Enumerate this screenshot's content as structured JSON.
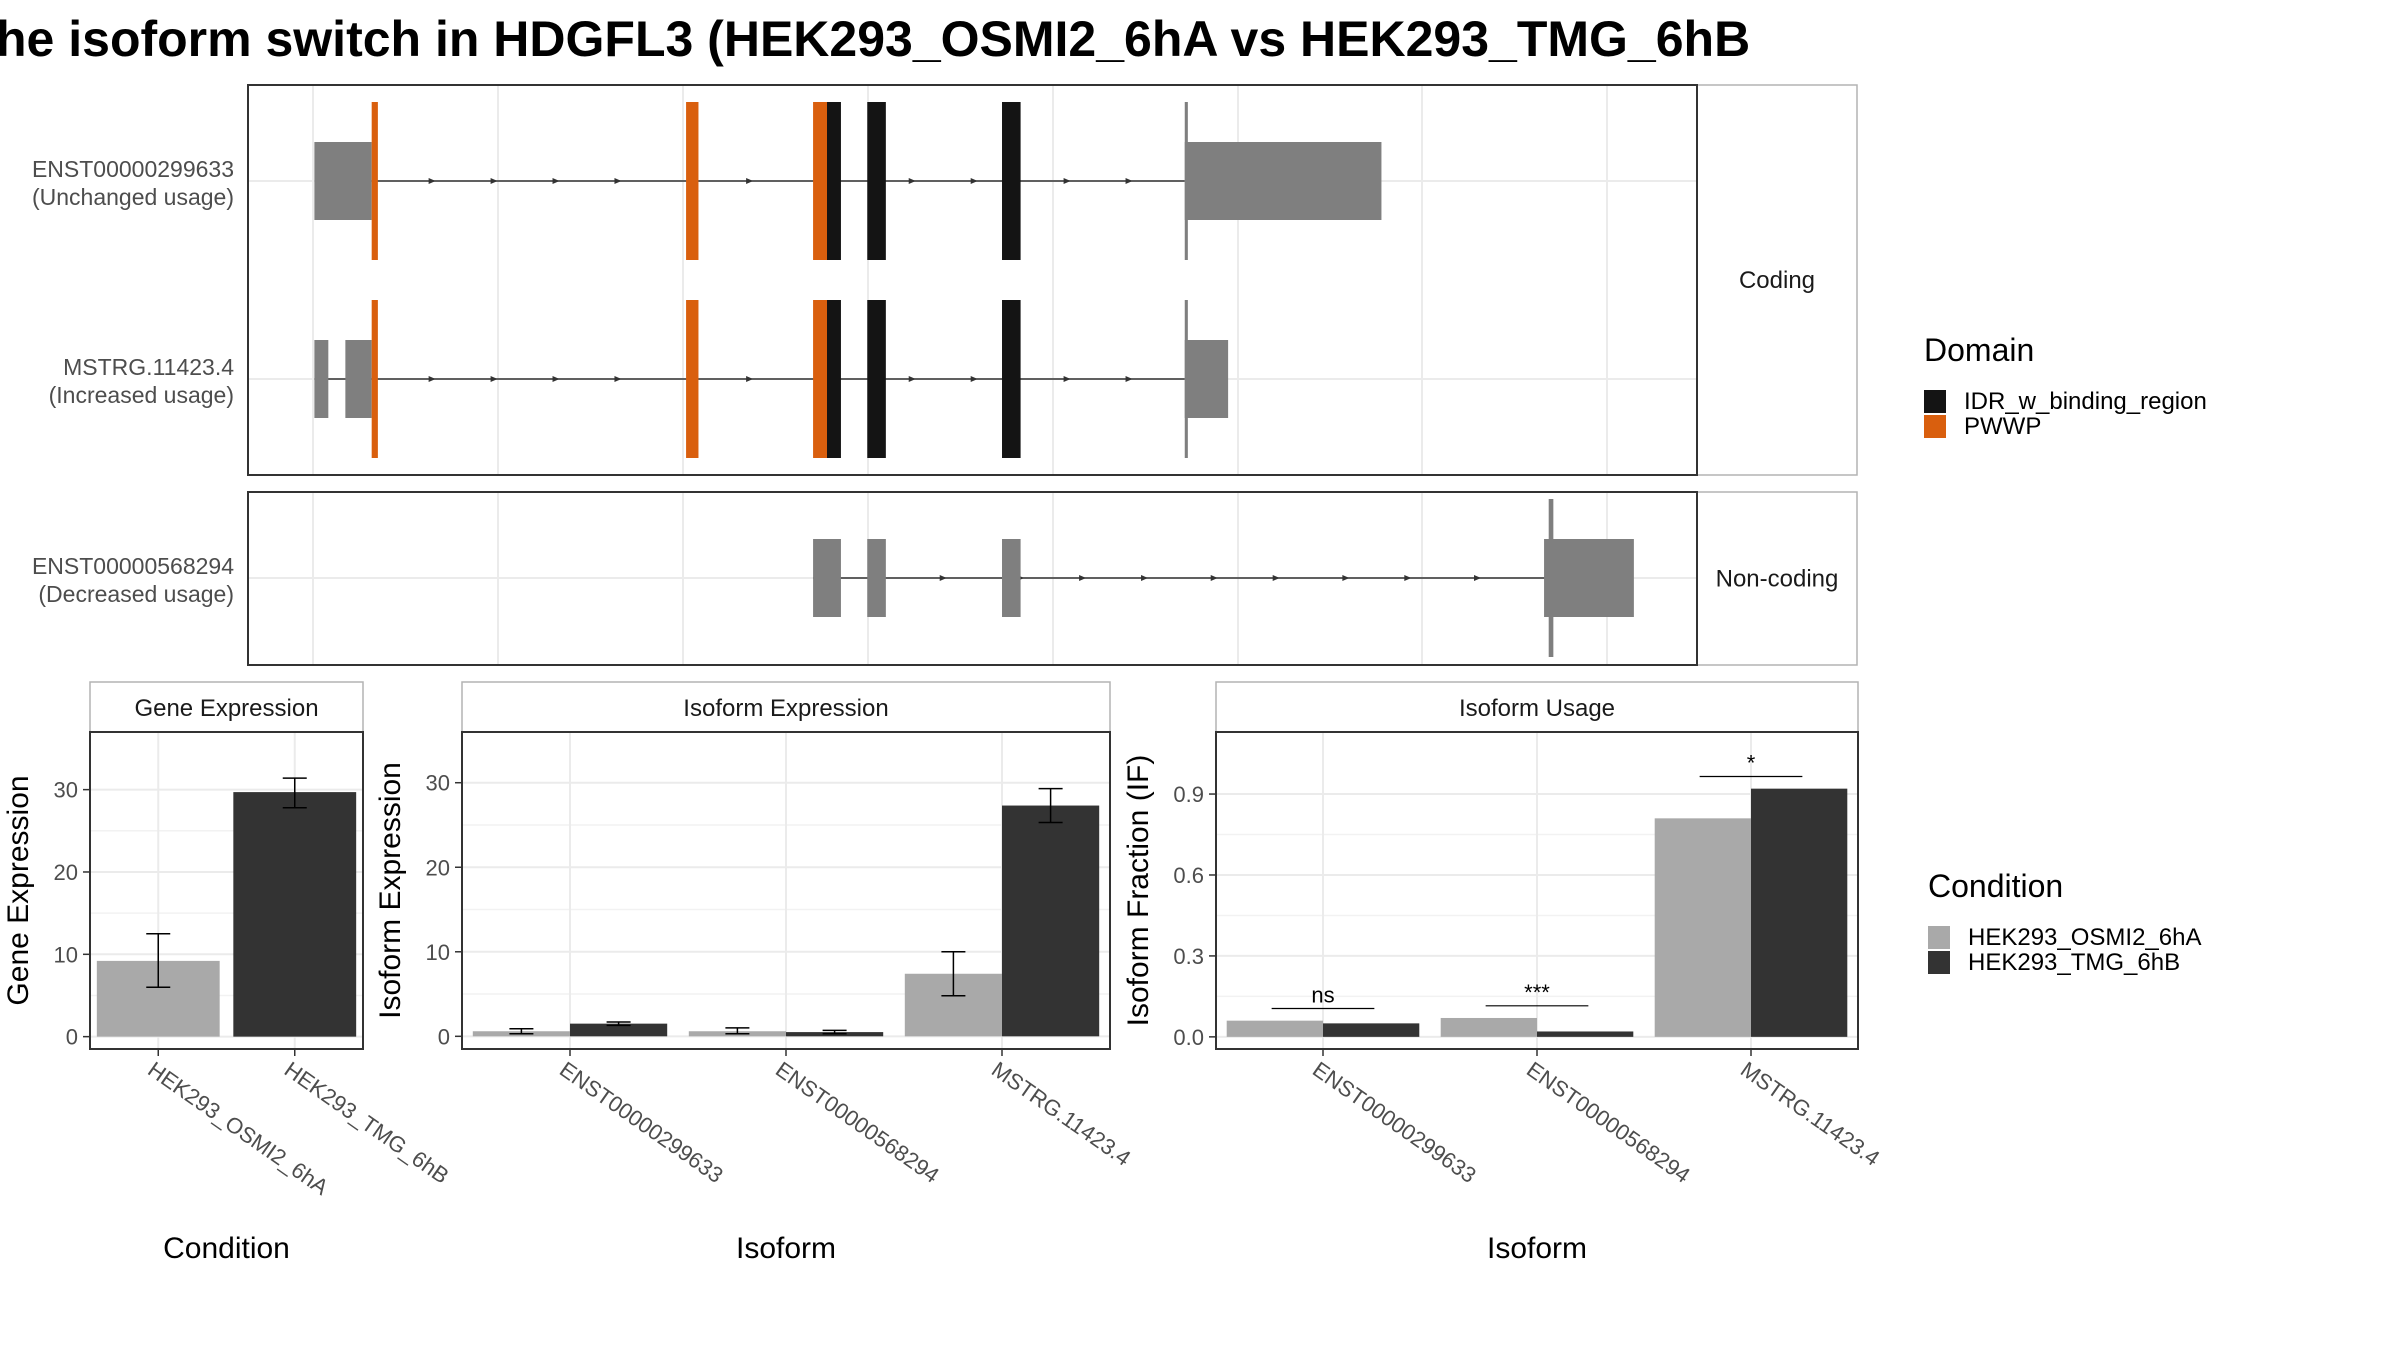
{
  "title": "he isoform switch in HDGFL3 (HEK293_OSMI2_6hA vs HEK293_TMG_6hB",
  "colors": {
    "utr": "#7f7f7f",
    "IDR_w_binding_region": "#141414",
    "PWWP": "#d95f0e",
    "cond1": "#a9a9a9",
    "cond2": "#333333",
    "grid": "#ebebeb",
    "panel_border": "#333333",
    "strip_border": "#b3b3b3"
  },
  "transcripts": {
    "panels": [
      {
        "label": "Coding",
        "rows": [
          {
            "name": "ENST00000299633",
            "usage": "(Unchanged usage)",
            "line": [
              240,
              765
            ],
            "arrows": [
              280,
              320,
              360,
              400,
              485,
              590,
              630,
              690,
              730
            ],
            "blocks": [
              {
                "start": 203,
                "end": 240,
                "type": "utr"
              },
              {
                "start": 240,
                "end": 244,
                "type": "PWWP",
                "tall": true
              },
              {
                "start": 443,
                "end": 451,
                "type": "PWWP",
                "tall": true
              },
              {
                "start": 525,
                "end": 534,
                "type": "PWWP",
                "tall": true
              },
              {
                "start": 534,
                "end": 543,
                "type": "IDR_w_binding_region",
                "tall": true
              },
              {
                "start": 560,
                "end": 572,
                "type": "IDR_w_binding_region",
                "tall": true
              },
              {
                "start": 647,
                "end": 659,
                "type": "IDR_w_binding_region",
                "tall": true
              },
              {
                "start": 765,
                "end": 767,
                "type": "utr",
                "tall": true
              },
              {
                "start": 765,
                "end": 892,
                "type": "utr"
              }
            ]
          },
          {
            "name": "MSTRG.11423.4",
            "usage": "(Increased usage)",
            "line": [
              203,
              765
            ],
            "arrows": [
              280,
              320,
              360,
              400,
              485,
              590,
              630,
              690,
              730
            ],
            "blocks": [
              {
                "start": 203,
                "end": 212,
                "type": "utr"
              },
              {
                "start": 223,
                "end": 240,
                "type": "utr"
              },
              {
                "start": 240,
                "end": 244,
                "type": "PWWP",
                "tall": true
              },
              {
                "start": 443,
                "end": 451,
                "type": "PWWP",
                "tall": true
              },
              {
                "start": 525,
                "end": 534,
                "type": "PWWP",
                "tall": true
              },
              {
                "start": 534,
                "end": 543,
                "type": "IDR_w_binding_region",
                "tall": true
              },
              {
                "start": 560,
                "end": 572,
                "type": "IDR_w_binding_region",
                "tall": true
              },
              {
                "start": 647,
                "end": 659,
                "type": "IDR_w_binding_region",
                "tall": true
              },
              {
                "start": 765,
                "end": 767,
                "type": "utr",
                "tall": true
              },
              {
                "start": 765,
                "end": 793,
                "type": "utr"
              }
            ]
          }
        ]
      },
      {
        "label": "Non-coding",
        "rows": [
          {
            "name": "ENST00000568294",
            "usage": "(Decreased usage)",
            "line": [
              525,
              1000
            ],
            "arrows": [
              610,
              660,
              700,
              740,
              785,
              825,
              870,
              910,
              955
            ],
            "blocks": [
              {
                "start": 525,
                "end": 543,
                "type": "utr"
              },
              {
                "start": 560,
                "end": 572,
                "type": "utr"
              },
              {
                "start": 647,
                "end": 659,
                "type": "utr"
              },
              {
                "start": 1000,
                "end": 1003,
                "type": "utr",
                "tall": true
              },
              {
                "start": 997,
                "end": 1055,
                "type": "utr"
              }
            ]
          }
        ]
      }
    ]
  },
  "domain_legend": {
    "title": "Domain",
    "items": [
      {
        "label": "IDR_w_binding_region",
        "color": "#141414"
      },
      {
        "label": "PWWP",
        "color": "#d95f0e"
      }
    ]
  },
  "condition_legend": {
    "title": "Condition",
    "items": [
      {
        "label": "HEK293_OSMI2_6hA",
        "color": "#a9a9a9"
      },
      {
        "label": "HEK293_TMG_6hB",
        "color": "#333333"
      }
    ]
  },
  "chart_data": [
    {
      "type": "bar",
      "strip": "Gene Expression",
      "xlabel": "Condition",
      "ylabel": "Gene Expression",
      "ylim": [
        -1.5,
        37
      ],
      "yticks": [
        0,
        10,
        20,
        30
      ],
      "categories": [
        "HEK293_OSMI2_6hA",
        "HEK293_TMG_6hB"
      ],
      "series": [
        {
          "values": [
            9.2,
            null
          ],
          "errors": [
            [
              6.0,
              12.5
            ],
            null
          ]
        },
        {
          "values": [
            null,
            29.7
          ],
          "errors": [
            null,
            [
              27.8,
              31.4
            ]
          ]
        }
      ],
      "layout": "single"
    },
    {
      "type": "bar",
      "strip": "Isoform Expression",
      "xlabel": "Isoform",
      "ylabel": "Isoform Expression",
      "ylim": [
        -1.5,
        36
      ],
      "yticks": [
        0,
        10,
        20,
        30
      ],
      "categories": [
        "ENST00000299633",
        "ENST00000568294",
        "MSTRG.11423.4"
      ],
      "series": [
        {
          "name": "HEK293_OSMI2_6hA",
          "values": [
            0.6,
            0.6,
            7.4
          ],
          "errors": [
            [
              0.3,
              0.9
            ],
            [
              0.3,
              1.0
            ],
            [
              4.8,
              10.0
            ]
          ]
        },
        {
          "name": "HEK293_TMG_6hB",
          "values": [
            1.5,
            0.5,
            27.3
          ],
          "errors": [
            [
              1.3,
              1.7
            ],
            [
              0.3,
              0.7
            ],
            [
              25.3,
              29.3
            ]
          ]
        }
      ],
      "layout": "dodge"
    },
    {
      "type": "bar",
      "strip": "Isoform Usage",
      "xlabel": "Isoform",
      "ylabel": "Isoform Fraction (IF)",
      "ylim": [
        -0.045,
        1.13
      ],
      "yticks": [
        0.0,
        0.3,
        0.6,
        0.9
      ],
      "ytick_labels": [
        "0.0",
        "0.3",
        "0.6",
        "0.9"
      ],
      "categories": [
        "ENST00000299633",
        "ENST00000568294",
        "MSTRG.11423.4"
      ],
      "series": [
        {
          "name": "HEK293_OSMI2_6hA",
          "values": [
            0.06,
            0.07,
            0.81
          ]
        },
        {
          "name": "HEK293_TMG_6hB",
          "values": [
            0.05,
            0.02,
            0.92
          ]
        }
      ],
      "significance": [
        {
          "label": "ns",
          "y": 0.105
        },
        {
          "label": "***",
          "y": 0.115
        },
        {
          "label": "*",
          "y": 0.965
        }
      ],
      "layout": "dodge"
    }
  ]
}
